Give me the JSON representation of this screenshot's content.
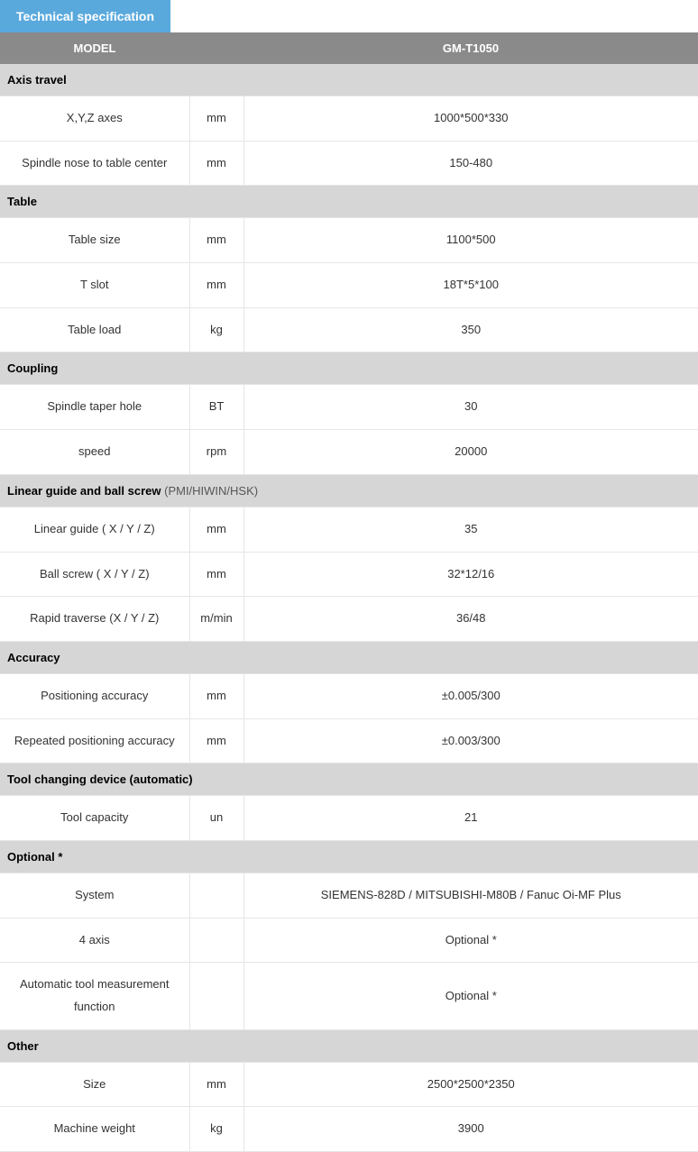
{
  "tab_label": "Technical specification",
  "header": {
    "col_model": "MODEL",
    "col_unit": "",
    "col_value": "GM-T1050"
  },
  "sections": [
    {
      "title": "Axis travel",
      "title_note": "",
      "rows": [
        {
          "label": "X,Y,Z axes",
          "unit": "mm",
          "value": "1000*500*330"
        },
        {
          "label": "Spindle nose to table center",
          "unit": "mm",
          "value": "150-480"
        }
      ]
    },
    {
      "title": "Table",
      "title_note": "",
      "rows": [
        {
          "label": "Table size",
          "unit": "mm",
          "value": "1100*500"
        },
        {
          "label": "T slot",
          "unit": "mm",
          "value": "18T*5*100"
        },
        {
          "label": "Table load",
          "unit": "kg",
          "value": "350"
        }
      ]
    },
    {
      "title": "Coupling",
      "title_note": "",
      "rows": [
        {
          "label": "Spindle taper hole",
          "unit": "BT",
          "value": "30"
        },
        {
          "label": "speed",
          "unit": "rpm",
          "value": "20000"
        }
      ]
    },
    {
      "title": "Linear guide and ball screw",
      "title_note": " (PMI/HIWIN/HSK)",
      "rows": [
        {
          "label": "Linear guide ( X / Y / Z)",
          "unit": "mm",
          "value": "35"
        },
        {
          "label": "Ball screw ( X / Y / Z)",
          "unit": "mm",
          "value": "32*12/16"
        },
        {
          "label": "Rapid traverse (X / Y / Z)",
          "unit": "m/min",
          "value": "36/48"
        }
      ]
    },
    {
      "title": "Accuracy",
      "title_note": "",
      "rows": [
        {
          "label": "Positioning accuracy",
          "unit": "mm",
          "value": "±0.005/300"
        },
        {
          "label": "Repeated positioning accuracy",
          "unit": "mm",
          "value": "±0.003/300"
        }
      ]
    },
    {
      "title": "Tool changing device (automatic)",
      "title_note": "",
      "rows": [
        {
          "label": "Tool capacity",
          "unit": "un",
          "value": "21"
        }
      ]
    },
    {
      "title": "Optional *",
      "title_note": "",
      "rows": [
        {
          "label": "System",
          "unit": "",
          "value": "SIEMENS-828D /  MITSUBISHI-M80B / Fanuc Oi-MF Plus"
        },
        {
          "label": "4 axis",
          "unit": "",
          "value": "Optional *"
        },
        {
          "label": "Automatic tool measurement function",
          "unit": "",
          "value": "Optional *"
        }
      ]
    },
    {
      "title": "Other",
      "title_note": "",
      "rows": [
        {
          "label": "Size",
          "unit": "mm",
          "value": "2500*2500*2350"
        },
        {
          "label": "Machine weight",
          "unit": "kg",
          "value": "3900"
        }
      ]
    }
  ]
}
